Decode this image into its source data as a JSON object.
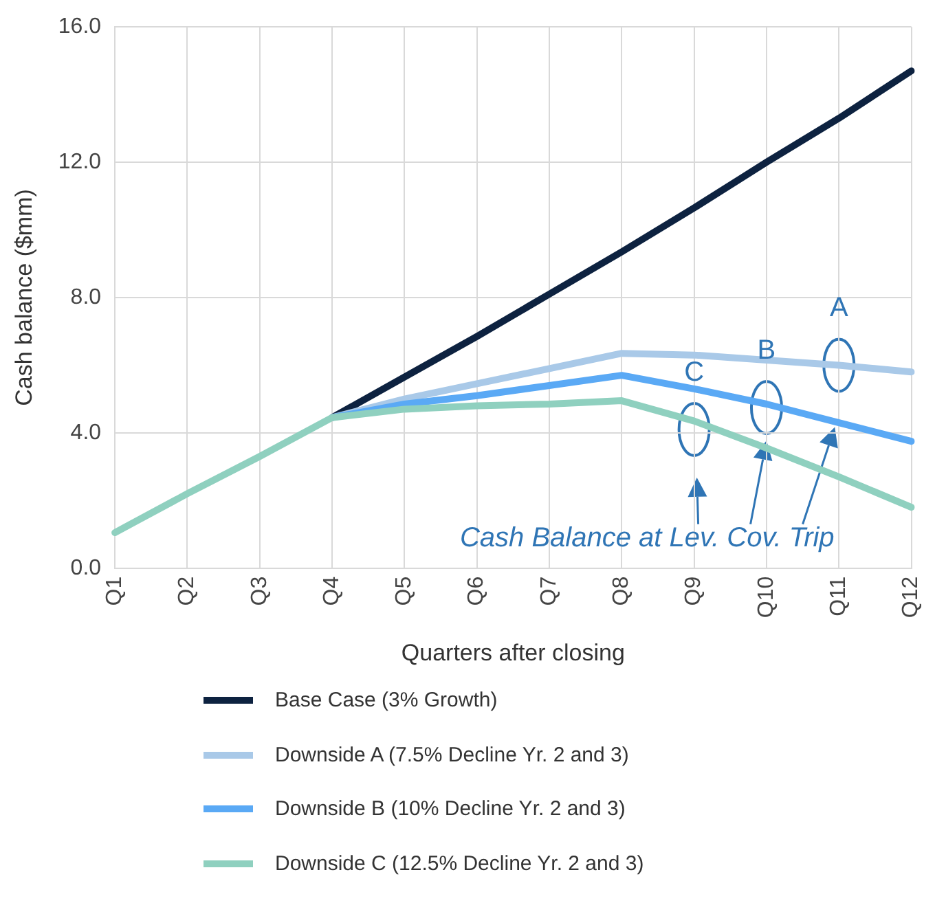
{
  "chart_data": {
    "type": "line",
    "xlabel": "Quarters after closing",
    "ylabel": "Cash balance ($mm)",
    "categories": [
      "Q1",
      "Q2",
      "Q3",
      "Q4",
      "Q5",
      "Q6",
      "Q7",
      "Q8",
      "Q9",
      "Q10",
      "Q11",
      "Q12"
    ],
    "series": [
      {
        "name": "Base Case (3% Growth)",
        "color": "#0d2240",
        "values": [
          null,
          null,
          null,
          4.45,
          5.65,
          6.85,
          8.1,
          9.35,
          10.65,
          12.0,
          13.3,
          14.7
        ]
      },
      {
        "name": "Downside A (7.5% Decline Yr. 2 and 3)",
        "color": "#a9c9e8",
        "values": [
          null,
          null,
          null,
          4.45,
          5.0,
          5.45,
          5.9,
          6.35,
          6.3,
          6.15,
          6.0,
          5.8
        ]
      },
      {
        "name": "Downside B (10% Decline Yr. 2 and 3)",
        "color": "#5aa9f5",
        "values": [
          null,
          null,
          null,
          4.45,
          4.85,
          5.1,
          5.4,
          5.7,
          5.3,
          4.85,
          4.3,
          3.75
        ]
      },
      {
        "name": "Downside C (12.5% Decline Yr. 2 and 3)",
        "color": "#8fd0bf",
        "values": [
          1.05,
          2.2,
          3.3,
          4.45,
          4.7,
          4.8,
          4.85,
          4.95,
          4.35,
          3.55,
          2.7,
          1.8
        ]
      }
    ],
    "ylim": [
      0,
      16
    ],
    "yticks": [
      {
        "value": 0,
        "label": "0.0"
      },
      {
        "value": 4,
        "label": "4.0"
      },
      {
        "value": 8,
        "label": "8.0"
      },
      {
        "value": 12,
        "label": "12.0"
      },
      {
        "value": 16,
        "label": "16.0"
      }
    ],
    "grid": true,
    "legend": "bottom",
    "marker": "none",
    "line_style": "solid",
    "annotations": [
      {
        "text": "C",
        "x": "Q9",
        "y": 4.1
      },
      {
        "text": "B",
        "x": "Q10",
        "y": 4.75
      },
      {
        "text": "A",
        "x": "Q11",
        "y": 6.0
      },
      "Cash Balance at Lev. Cov. Trip"
    ]
  }
}
